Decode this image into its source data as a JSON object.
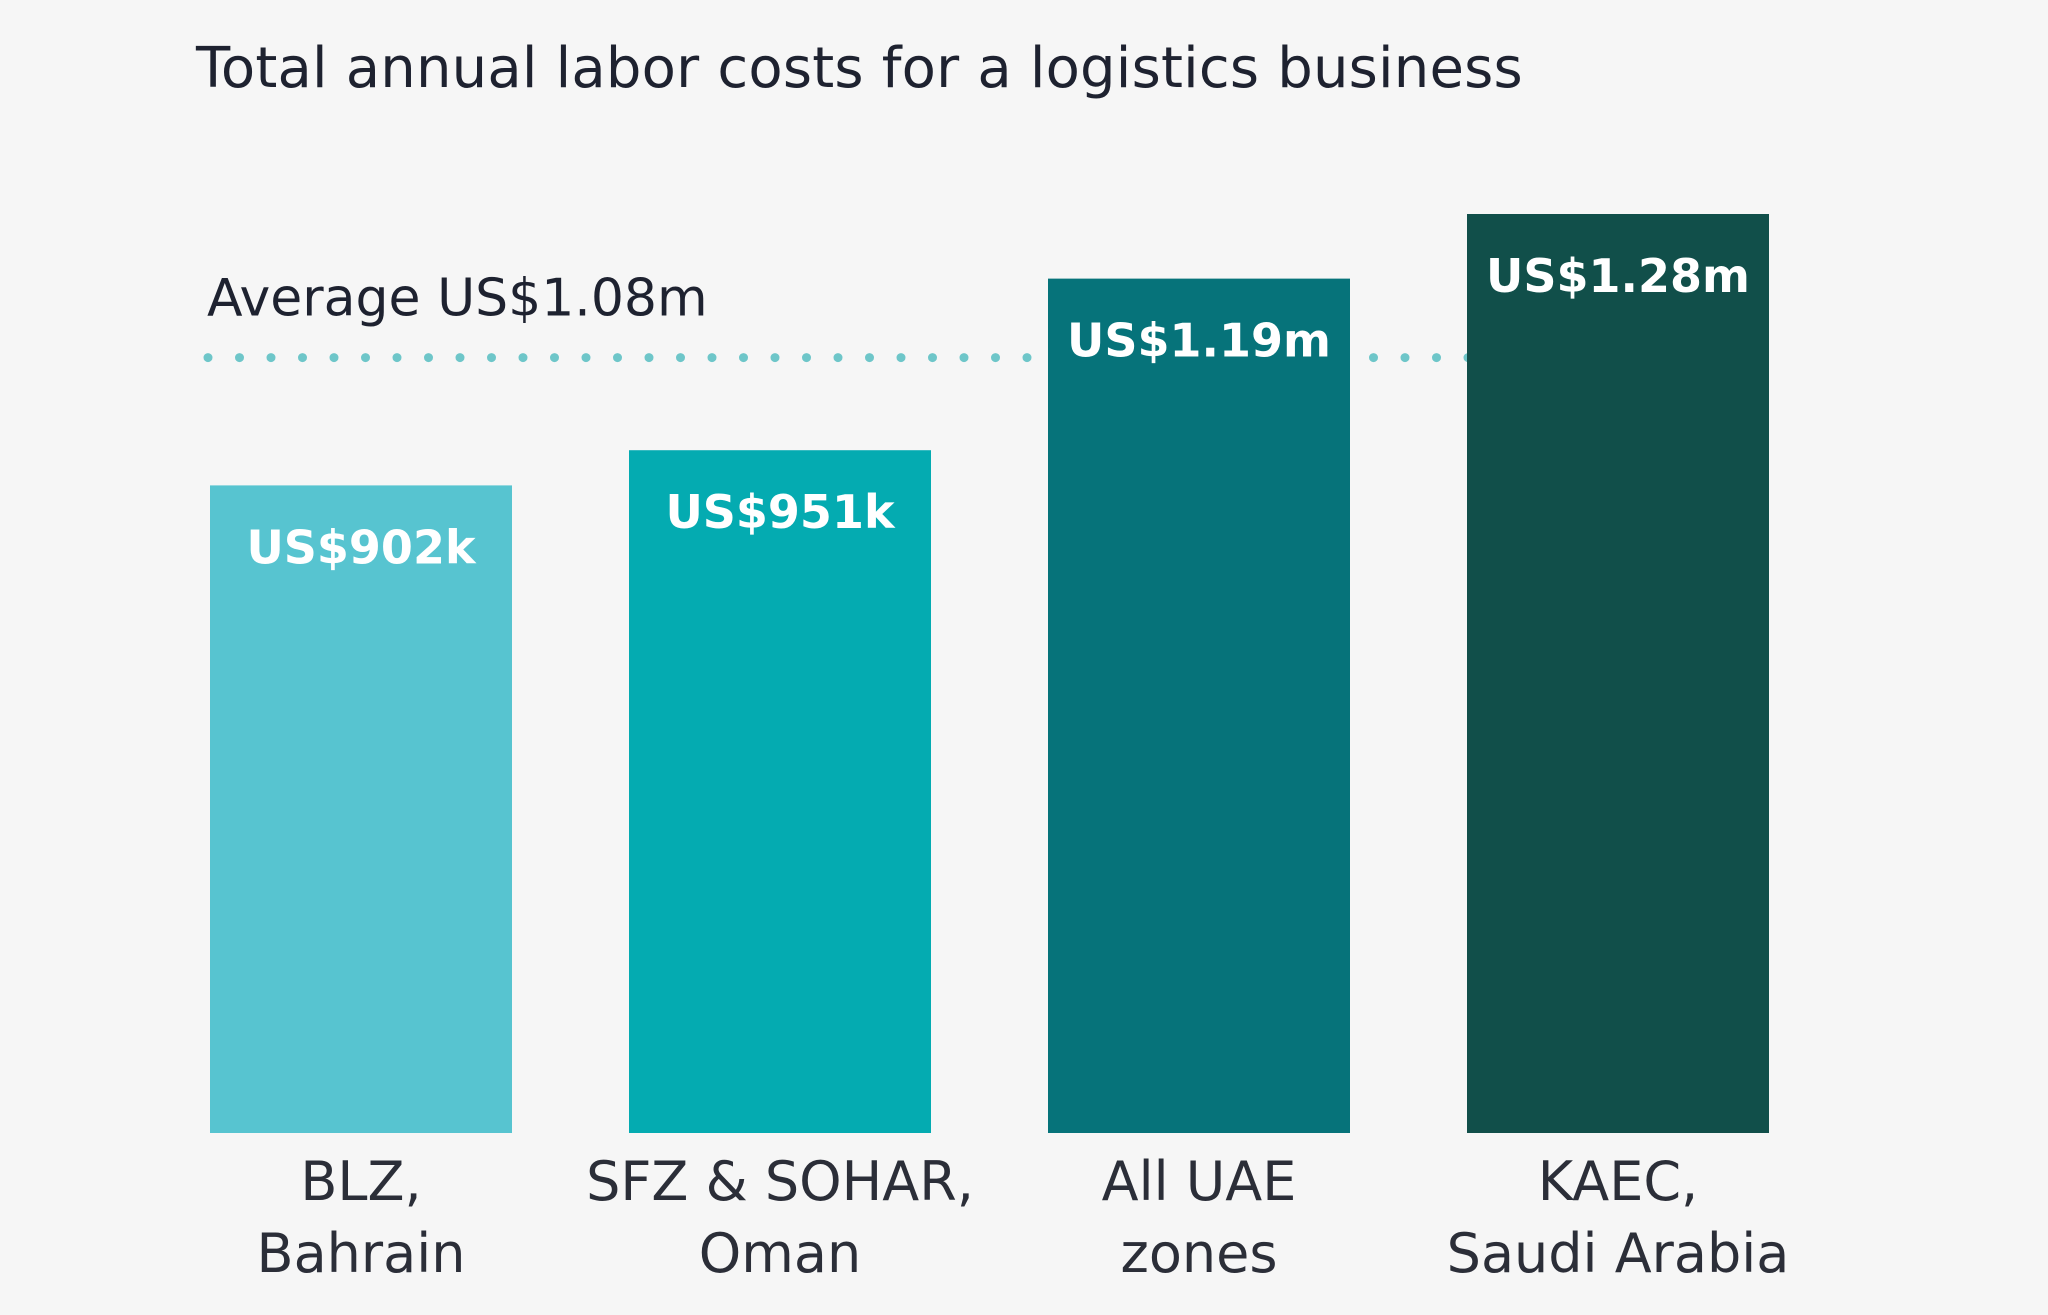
{
  "chart_data": {
    "type": "bar",
    "title": "Total annual labor costs for a logistics business",
    "categories": [
      [
        "BLZ,",
        "Bahrain"
      ],
      [
        "SFZ & SOHAR,",
        "Oman"
      ],
      [
        "All UAE",
        "zones"
      ],
      [
        "KAEC,",
        "Saudi Arabia"
      ]
    ],
    "values": [
      0.902,
      0.951,
      1.19,
      1.28
    ],
    "value_labels": [
      "US$902k",
      "US$951k",
      "US$1.19m",
      "US$1.28m"
    ],
    "value_unit": "US$ million",
    "bar_colors": [
      "#57c4d0",
      "#04abb1",
      "#06737a",
      "#114f4a"
    ],
    "average": {
      "value": 1.08,
      "label": "Average US$1.08m",
      "color": "#6ec6c9",
      "style": "dotted"
    },
    "ylim": [
      0,
      1.28
    ],
    "xlabel": "",
    "ylabel": "",
    "grid": false,
    "legend": "none"
  }
}
